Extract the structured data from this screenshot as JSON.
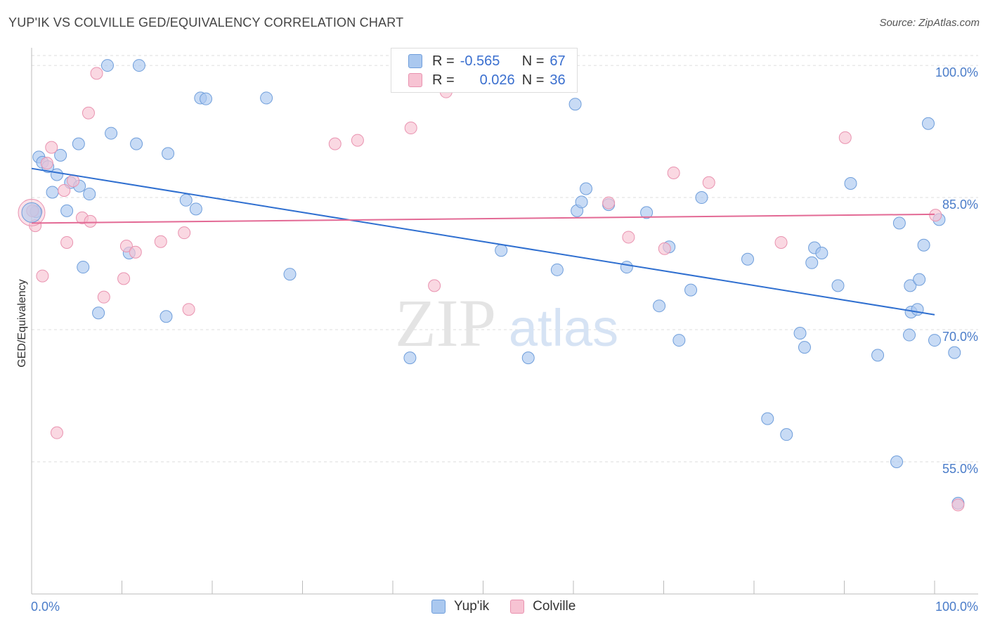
{
  "title": "YUP'IK VS COLVILLE GED/EQUIVALENCY CORRELATION CHART",
  "source": "Source: ZipAtlas.com",
  "watermark": {
    "zip": "ZIP",
    "atlas": "atlas"
  },
  "legend": {
    "rows": [
      {
        "r_label": "R =",
        "r_value": "-0.565",
        "n_label": "N =",
        "n_value": "67"
      },
      {
        "r_label": "R =",
        "r_value": "0.026",
        "n_label": "N =",
        "n_value": "36"
      }
    ]
  },
  "bottom_legend": [
    "Yup'ik",
    "Colville"
  ],
  "colors": {
    "blue_fill": "#aac8ef",
    "blue_stroke": "#6f9edb",
    "blue_line": "#2f6fd0",
    "pink_fill": "#f7c3d3",
    "pink_stroke": "#e993b0",
    "pink_line": "#e36a95",
    "grid": "#dddddd",
    "tick_text": "#4a7cc9"
  },
  "chart_data": {
    "type": "scatter",
    "ylabel": "GED/Equivalency",
    "xlabel": "",
    "xlim": [
      0,
      100
    ],
    "ylim": [
      40,
      102
    ],
    "x_tick_labels": [
      "0.0%",
      "100.0%"
    ],
    "y_ticks": [
      {
        "value": 55,
        "label": "55.0%"
      },
      {
        "value": 70,
        "label": "70.0%"
      },
      {
        "value": 85,
        "label": "85.0%"
      },
      {
        "value": 100,
        "label": "100.0%"
      }
    ],
    "series": [
      {
        "name": "Yup'ik",
        "trend": {
          "x": [
            0,
            100
          ],
          "y": [
            88.3,
            71.7
          ]
        },
        "points": [
          [
            0.5,
            83.4
          ],
          [
            0.8,
            89.6
          ],
          [
            1.2,
            89.0
          ],
          [
            1.8,
            88.5
          ],
          [
            2.3,
            85.6
          ],
          [
            2.8,
            87.6
          ],
          [
            3.2,
            89.8
          ],
          [
            3.9,
            83.5
          ],
          [
            4.3,
            86.7
          ],
          [
            5.2,
            91.1
          ],
          [
            5.3,
            86.3
          ],
          [
            5.7,
            77.1
          ],
          [
            6.4,
            85.4
          ],
          [
            7.4,
            71.9
          ],
          [
            8.4,
            100.0
          ],
          [
            8.8,
            92.3
          ],
          [
            10.8,
            78.7
          ],
          [
            11.6,
            91.1
          ],
          [
            11.9,
            100.0
          ],
          [
            15.1,
            90.0
          ],
          [
            14.9,
            71.5
          ],
          [
            17.1,
            84.7
          ],
          [
            18.2,
            83.7
          ],
          [
            18.7,
            96.3
          ],
          [
            19.3,
            96.2
          ],
          [
            26.0,
            96.3
          ],
          [
            28.6,
            76.3
          ],
          [
            41.9,
            66.8
          ],
          [
            52.0,
            79.0
          ],
          [
            55.0,
            66.8
          ],
          [
            58.2,
            76.8
          ],
          [
            60.2,
            95.6
          ],
          [
            60.4,
            83.5
          ],
          [
            60.9,
            84.5
          ],
          [
            61.4,
            86.0
          ],
          [
            63.9,
            84.2
          ],
          [
            65.9,
            77.1
          ],
          [
            68.1,
            83.3
          ],
          [
            69.5,
            72.7
          ],
          [
            70.6,
            79.4
          ],
          [
            71.7,
            68.8
          ],
          [
            73.0,
            74.5
          ],
          [
            74.2,
            85.0
          ],
          [
            79.3,
            78.0
          ],
          [
            81.5,
            59.9
          ],
          [
            83.6,
            58.1
          ],
          [
            85.1,
            69.6
          ],
          [
            85.6,
            68.0
          ],
          [
            86.4,
            77.6
          ],
          [
            86.7,
            79.3
          ],
          [
            87.5,
            78.7
          ],
          [
            89.3,
            75.0
          ],
          [
            90.7,
            86.6
          ],
          [
            93.7,
            67.1
          ],
          [
            95.8,
            55.0
          ],
          [
            96.1,
            82.1
          ],
          [
            97.2,
            69.4
          ],
          [
            97.4,
            72.0
          ],
          [
            97.3,
            75.0
          ],
          [
            98.1,
            72.3
          ],
          [
            98.3,
            75.7
          ],
          [
            98.8,
            79.6
          ],
          [
            99.3,
            93.4
          ],
          [
            100.0,
            68.8
          ],
          [
            100.5,
            82.5
          ],
          [
            102.2,
            67.4
          ],
          [
            102.6,
            50.3
          ]
        ]
      },
      {
        "name": "Colville",
        "trend": {
          "x": [
            0,
            100
          ],
          "y": [
            82.1,
            83.1
          ]
        },
        "points": [
          [
            0.1,
            83.5
          ],
          [
            0.4,
            81.8
          ],
          [
            1.2,
            76.1
          ],
          [
            1.7,
            88.9
          ],
          [
            2.2,
            90.7
          ],
          [
            2.8,
            58.3
          ],
          [
            3.6,
            85.8
          ],
          [
            3.9,
            79.9
          ],
          [
            4.6,
            86.9
          ],
          [
            5.6,
            82.7
          ],
          [
            6.3,
            94.6
          ],
          [
            6.5,
            82.3
          ],
          [
            7.2,
            99.1
          ],
          [
            8.0,
            73.7
          ],
          [
            10.2,
            75.8
          ],
          [
            10.5,
            79.5
          ],
          [
            11.5,
            78.8
          ],
          [
            14.3,
            80.0
          ],
          [
            16.9,
            81.0
          ],
          [
            17.4,
            72.3
          ],
          [
            33.6,
            91.1
          ],
          [
            36.1,
            91.5
          ],
          [
            42.0,
            92.9
          ],
          [
            44.6,
            75.0
          ],
          [
            45.9,
            97.0
          ],
          [
            47.2,
            100.0
          ],
          [
            57.0,
            100.0
          ],
          [
            63.9,
            84.4
          ],
          [
            66.1,
            80.5
          ],
          [
            70.1,
            79.2
          ],
          [
            71.1,
            87.8
          ],
          [
            75.0,
            86.7
          ],
          [
            83.0,
            79.9
          ],
          [
            90.1,
            91.8
          ],
          [
            102.6,
            50.1
          ],
          [
            100.1,
            83.0
          ]
        ]
      }
    ]
  }
}
